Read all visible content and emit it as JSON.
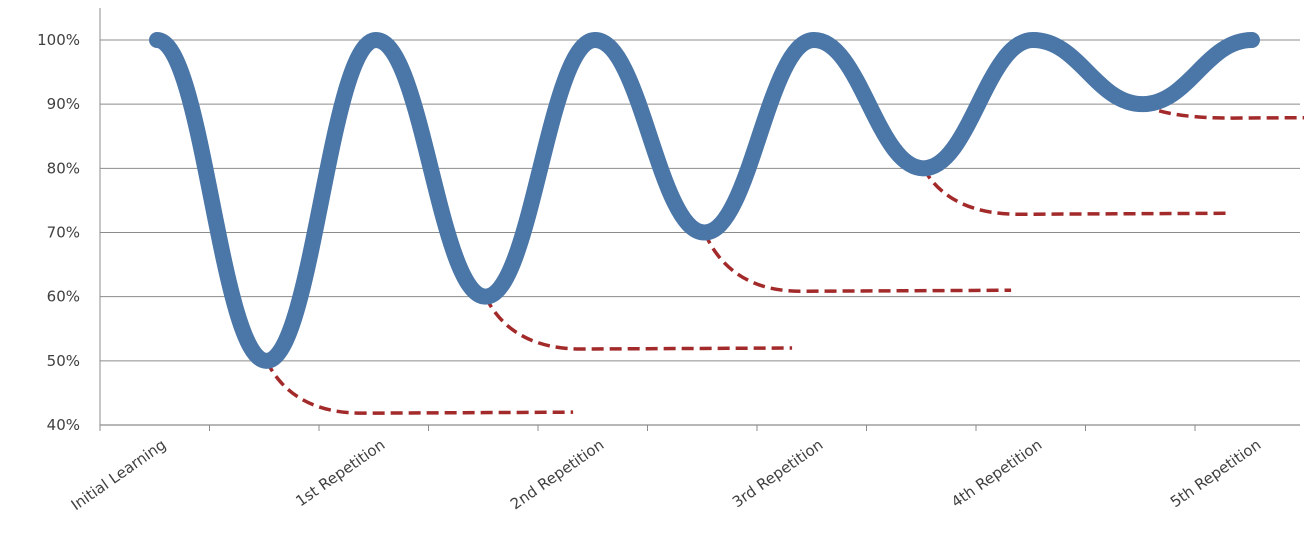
{
  "chart_data": {
    "type": "line",
    "categories": [
      "Initial Learning",
      "1st Repetition",
      "2nd Repetition",
      "3rd Repetition",
      "4th Repetition",
      "5th Repetition"
    ],
    "yticks": [
      "40%",
      "50%",
      "60%",
      "70%",
      "80%",
      "90%",
      "100%"
    ],
    "ylim": [
      40,
      100
    ],
    "grid": true,
    "series": [
      {
        "role": "retention-curve",
        "color": "#4A76A8",
        "points": [
          [
            0,
            100
          ],
          [
            0.5,
            50
          ],
          [
            1,
            100
          ],
          [
            1.5,
            60
          ],
          [
            2,
            100
          ],
          [
            2.5,
            70
          ],
          [
            3,
            100
          ],
          [
            3.5,
            80
          ],
          [
            4,
            100
          ],
          [
            4.5,
            90
          ],
          [
            5,
            100
          ]
        ]
      }
    ],
    "forgetting_curves": {
      "color": "#A32A2A",
      "curves": [
        {
          "start": [
            0.5,
            50
          ],
          "end_x": 1.9,
          "plateau": 42
        },
        {
          "start": [
            1.5,
            60
          ],
          "end_x": 2.9,
          "plateau": 52
        },
        {
          "start": [
            2.5,
            70
          ],
          "end_x": 3.9,
          "plateau": 61
        },
        {
          "start": [
            3.5,
            80
          ],
          "end_x": 4.9,
          "plateau": 73
        },
        {
          "start": [
            4.5,
            90
          ],
          "end_x": 5.9,
          "plateau": 88
        }
      ]
    }
  }
}
